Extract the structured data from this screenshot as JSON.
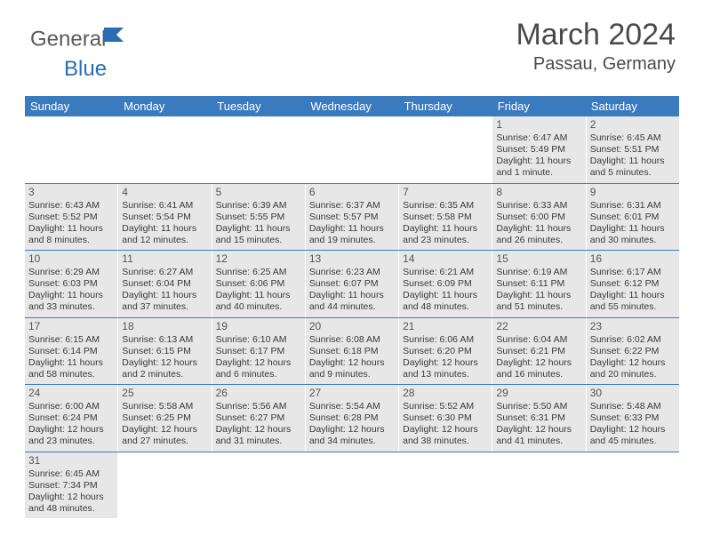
{
  "logo": {
    "part1": "General",
    "part2": "Blue"
  },
  "title": "March 2024",
  "location": "Passau, Germany",
  "colors": {
    "header_bg": "#3a7bbf",
    "header_text": "#ffffff",
    "cell_bg": "#e7e7e7",
    "text": "#3a3a3a",
    "divider": "#3a7bbf"
  },
  "day_headers": [
    "Sunday",
    "Monday",
    "Tuesday",
    "Wednesday",
    "Thursday",
    "Friday",
    "Saturday"
  ],
  "weeks": [
    [
      {
        "day": "",
        "sunrise": "",
        "sunset": "",
        "daylight": ""
      },
      {
        "day": "",
        "sunrise": "",
        "sunset": "",
        "daylight": ""
      },
      {
        "day": "",
        "sunrise": "",
        "sunset": "",
        "daylight": ""
      },
      {
        "day": "",
        "sunrise": "",
        "sunset": "",
        "daylight": ""
      },
      {
        "day": "",
        "sunrise": "",
        "sunset": "",
        "daylight": ""
      },
      {
        "day": "1",
        "sunrise": "Sunrise: 6:47 AM",
        "sunset": "Sunset: 5:49 PM",
        "daylight": "Daylight: 11 hours and 1 minute."
      },
      {
        "day": "2",
        "sunrise": "Sunrise: 6:45 AM",
        "sunset": "Sunset: 5:51 PM",
        "daylight": "Daylight: 11 hours and 5 minutes."
      }
    ],
    [
      {
        "day": "3",
        "sunrise": "Sunrise: 6:43 AM",
        "sunset": "Sunset: 5:52 PM",
        "daylight": "Daylight: 11 hours and 8 minutes."
      },
      {
        "day": "4",
        "sunrise": "Sunrise: 6:41 AM",
        "sunset": "Sunset: 5:54 PM",
        "daylight": "Daylight: 11 hours and 12 minutes."
      },
      {
        "day": "5",
        "sunrise": "Sunrise: 6:39 AM",
        "sunset": "Sunset: 5:55 PM",
        "daylight": "Daylight: 11 hours and 15 minutes."
      },
      {
        "day": "6",
        "sunrise": "Sunrise: 6:37 AM",
        "sunset": "Sunset: 5:57 PM",
        "daylight": "Daylight: 11 hours and 19 minutes."
      },
      {
        "day": "7",
        "sunrise": "Sunrise: 6:35 AM",
        "sunset": "Sunset: 5:58 PM",
        "daylight": "Daylight: 11 hours and 23 minutes."
      },
      {
        "day": "8",
        "sunrise": "Sunrise: 6:33 AM",
        "sunset": "Sunset: 6:00 PM",
        "daylight": "Daylight: 11 hours and 26 minutes."
      },
      {
        "day": "9",
        "sunrise": "Sunrise: 6:31 AM",
        "sunset": "Sunset: 6:01 PM",
        "daylight": "Daylight: 11 hours and 30 minutes."
      }
    ],
    [
      {
        "day": "10",
        "sunrise": "Sunrise: 6:29 AM",
        "sunset": "Sunset: 6:03 PM",
        "daylight": "Daylight: 11 hours and 33 minutes."
      },
      {
        "day": "11",
        "sunrise": "Sunrise: 6:27 AM",
        "sunset": "Sunset: 6:04 PM",
        "daylight": "Daylight: 11 hours and 37 minutes."
      },
      {
        "day": "12",
        "sunrise": "Sunrise: 6:25 AM",
        "sunset": "Sunset: 6:06 PM",
        "daylight": "Daylight: 11 hours and 40 minutes."
      },
      {
        "day": "13",
        "sunrise": "Sunrise: 6:23 AM",
        "sunset": "Sunset: 6:07 PM",
        "daylight": "Daylight: 11 hours and 44 minutes."
      },
      {
        "day": "14",
        "sunrise": "Sunrise: 6:21 AM",
        "sunset": "Sunset: 6:09 PM",
        "daylight": "Daylight: 11 hours and 48 minutes."
      },
      {
        "day": "15",
        "sunrise": "Sunrise: 6:19 AM",
        "sunset": "Sunset: 6:11 PM",
        "daylight": "Daylight: 11 hours and 51 minutes."
      },
      {
        "day": "16",
        "sunrise": "Sunrise: 6:17 AM",
        "sunset": "Sunset: 6:12 PM",
        "daylight": "Daylight: 11 hours and 55 minutes."
      }
    ],
    [
      {
        "day": "17",
        "sunrise": "Sunrise: 6:15 AM",
        "sunset": "Sunset: 6:14 PM",
        "daylight": "Daylight: 11 hours and 58 minutes."
      },
      {
        "day": "18",
        "sunrise": "Sunrise: 6:13 AM",
        "sunset": "Sunset: 6:15 PM",
        "daylight": "Daylight: 12 hours and 2 minutes."
      },
      {
        "day": "19",
        "sunrise": "Sunrise: 6:10 AM",
        "sunset": "Sunset: 6:17 PM",
        "daylight": "Daylight: 12 hours and 6 minutes."
      },
      {
        "day": "20",
        "sunrise": "Sunrise: 6:08 AM",
        "sunset": "Sunset: 6:18 PM",
        "daylight": "Daylight: 12 hours and 9 minutes."
      },
      {
        "day": "21",
        "sunrise": "Sunrise: 6:06 AM",
        "sunset": "Sunset: 6:20 PM",
        "daylight": "Daylight: 12 hours and 13 minutes."
      },
      {
        "day": "22",
        "sunrise": "Sunrise: 6:04 AM",
        "sunset": "Sunset: 6:21 PM",
        "daylight": "Daylight: 12 hours and 16 minutes."
      },
      {
        "day": "23",
        "sunrise": "Sunrise: 6:02 AM",
        "sunset": "Sunset: 6:22 PM",
        "daylight": "Daylight: 12 hours and 20 minutes."
      }
    ],
    [
      {
        "day": "24",
        "sunrise": "Sunrise: 6:00 AM",
        "sunset": "Sunset: 6:24 PM",
        "daylight": "Daylight: 12 hours and 23 minutes."
      },
      {
        "day": "25",
        "sunrise": "Sunrise: 5:58 AM",
        "sunset": "Sunset: 6:25 PM",
        "daylight": "Daylight: 12 hours and 27 minutes."
      },
      {
        "day": "26",
        "sunrise": "Sunrise: 5:56 AM",
        "sunset": "Sunset: 6:27 PM",
        "daylight": "Daylight: 12 hours and 31 minutes."
      },
      {
        "day": "27",
        "sunrise": "Sunrise: 5:54 AM",
        "sunset": "Sunset: 6:28 PM",
        "daylight": "Daylight: 12 hours and 34 minutes."
      },
      {
        "day": "28",
        "sunrise": "Sunrise: 5:52 AM",
        "sunset": "Sunset: 6:30 PM",
        "daylight": "Daylight: 12 hours and 38 minutes."
      },
      {
        "day": "29",
        "sunrise": "Sunrise: 5:50 AM",
        "sunset": "Sunset: 6:31 PM",
        "daylight": "Daylight: 12 hours and 41 minutes."
      },
      {
        "day": "30",
        "sunrise": "Sunrise: 5:48 AM",
        "sunset": "Sunset: 6:33 PM",
        "daylight": "Daylight: 12 hours and 45 minutes."
      }
    ],
    [
      {
        "day": "31",
        "sunrise": "Sunrise: 6:45 AM",
        "sunset": "Sunset: 7:34 PM",
        "daylight": "Daylight: 12 hours and 48 minutes."
      },
      {
        "day": "",
        "sunrise": "",
        "sunset": "",
        "daylight": ""
      },
      {
        "day": "",
        "sunrise": "",
        "sunset": "",
        "daylight": ""
      },
      {
        "day": "",
        "sunrise": "",
        "sunset": "",
        "daylight": ""
      },
      {
        "day": "",
        "sunrise": "",
        "sunset": "",
        "daylight": ""
      },
      {
        "day": "",
        "sunrise": "",
        "sunset": "",
        "daylight": ""
      },
      {
        "day": "",
        "sunrise": "",
        "sunset": "",
        "daylight": ""
      }
    ]
  ]
}
